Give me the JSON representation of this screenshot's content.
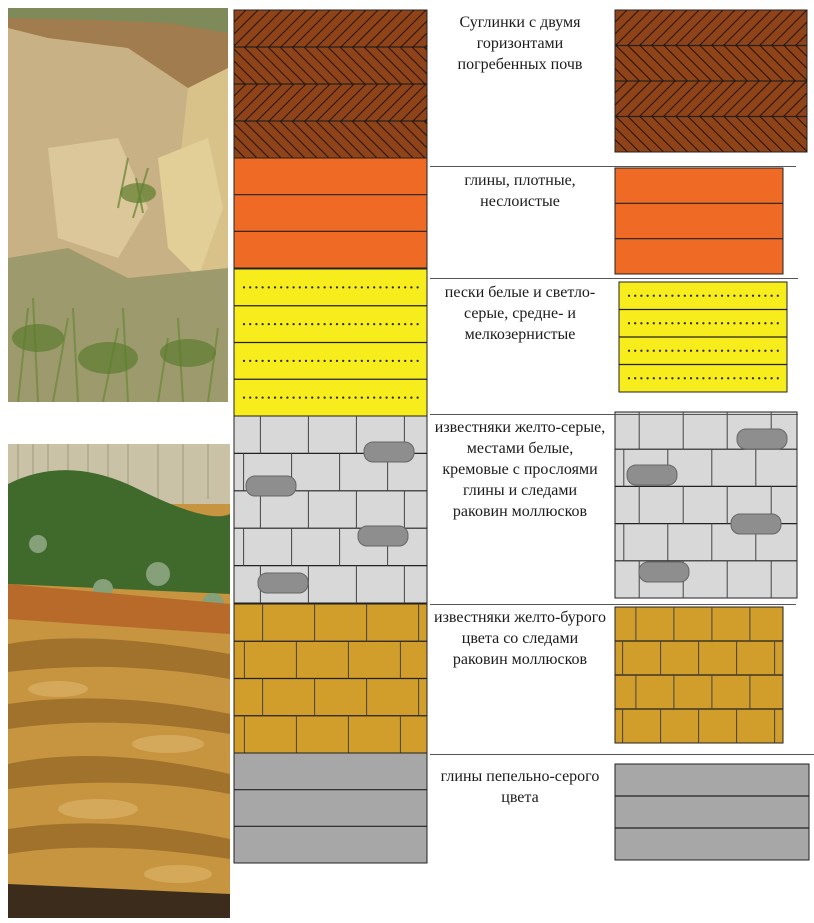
{
  "colors": {
    "loam": "#8f4318",
    "clay_dense": "#ef6a24",
    "sand": "#f7ec1c",
    "limestone_gray": "#d8d8d8",
    "limestone_brown": "#d19d2b",
    "clay_ash": "#a7a7a7"
  },
  "photos": {
    "top": {
      "icon": "cliff-outcrop-photo"
    },
    "bottom": {
      "icon": "rock-section-photo"
    }
  },
  "layers": [
    {
      "id": "loam",
      "pattern": "hatch",
      "label": "Суглинки с двумя горизонтами погребенных почв"
    },
    {
      "id": "clay_dense",
      "pattern": "bands",
      "label": "глины, плотные, неслоистые"
    },
    {
      "id": "sand",
      "pattern": "dots",
      "label": "пески белые и светло-серые, средне- и мелкозернистые"
    },
    {
      "id": "limestone_gray",
      "pattern": "bricks-shells",
      "label": "известняки желто-серые, местами белые, кремовые с прослоями глины и следами раковин моллюсков"
    },
    {
      "id": "limestone_brown",
      "pattern": "bricks",
      "label": "известняки желто-бурого цвета со следами раковин моллюсков"
    },
    {
      "id": "clay_ash",
      "pattern": "bands",
      "label": "глины пепельно-серого цвета"
    }
  ]
}
